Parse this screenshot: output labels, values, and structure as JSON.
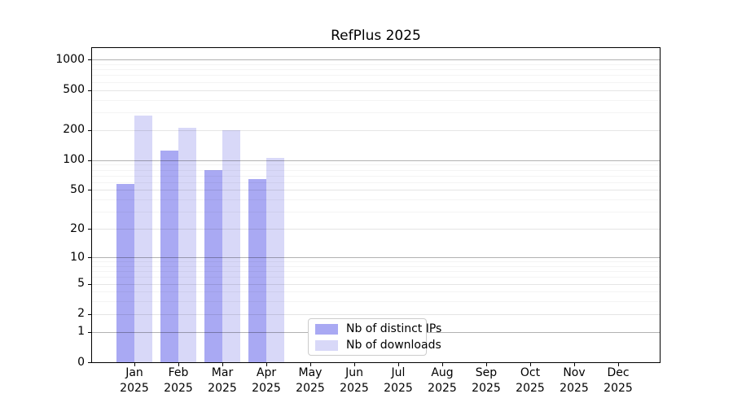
{
  "chart_data": {
    "type": "bar",
    "title": "RefPlus 2025",
    "year_label": "2025",
    "categories": [
      "Jan",
      "Feb",
      "Mar",
      "Apr",
      "May",
      "Jun",
      "Jul",
      "Aug",
      "Sep",
      "Oct",
      "Nov",
      "Dec"
    ],
    "series": [
      {
        "name": "Nb of distinct IPs",
        "color": "#a9a9f3",
        "values": [
          58,
          124,
          80,
          64,
          0,
          0,
          0,
          0,
          0,
          0,
          0,
          0
        ]
      },
      {
        "name": "Nb of downloads",
        "color": "#d8d8f8",
        "values": [
          280,
          211,
          200,
          106,
          0,
          0,
          0,
          0,
          0,
          0,
          0,
          0
        ]
      }
    ],
    "yscale": "log1p",
    "y_ticks": [
      0,
      1,
      2,
      5,
      10,
      20,
      50,
      100,
      200,
      500,
      1000
    ],
    "ylim": [
      0,
      1304
    ],
    "grid": "on",
    "legend": {
      "position": "lower-center",
      "labels": [
        "Nb of distinct IPs",
        "Nb of downloads"
      ]
    },
    "colors": {
      "grid_power10": "#b3b3b3",
      "grid_labeled": "#e6e6e6",
      "grid_minor": "#f5f5f5",
      "spine": "#000000",
      "background": "#ffffff"
    }
  }
}
